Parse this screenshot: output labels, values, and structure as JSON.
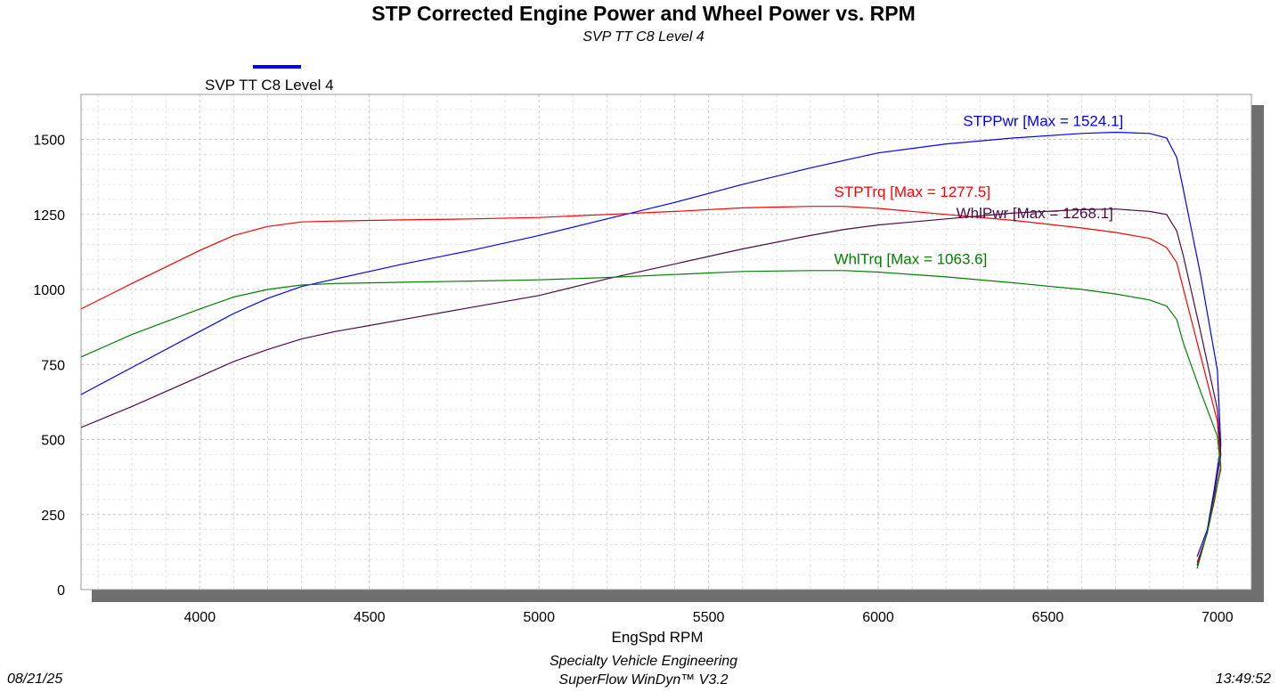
{
  "header": {
    "title": "STP Corrected Engine Power and Wheel Power vs. RPM",
    "subtitle": "SVP TT C8 Level 4"
  },
  "legend": {
    "label": "SVP TT C8 Level 4",
    "color": "#0000ff"
  },
  "footer": {
    "date": "08/21/25",
    "time": "13:49:52",
    "line1": "Specialty Vehicle Engineering",
    "line2": "SuperFlow WinDyn™ V3.2"
  },
  "chart_data": {
    "type": "line",
    "title": "STP Corrected Engine Power and Wheel Power vs. RPM",
    "subtitle": "SVP TT C8 Level 4",
    "xlabel": "EngSpd RPM",
    "ylabel": "",
    "xlim": [
      3650,
      7100
    ],
    "ylim": [
      0,
      1650
    ],
    "xticks": [
      4000,
      4500,
      5000,
      5500,
      6000,
      6500,
      7000
    ],
    "yticks": [
      0,
      250,
      500,
      750,
      1000,
      1250,
      1500
    ],
    "grid": true,
    "legend_position": "top-left",
    "series": [
      {
        "name": "STPPwr",
        "annotation": "STPPwr [Max = 1524.1]",
        "color": "#0000ff",
        "x": [
          3650,
          3800,
          4000,
          4100,
          4200,
          4300,
          4400,
          4500,
          4600,
          4800,
          5000,
          5200,
          5400,
          5600,
          5800,
          5900,
          6000,
          6200,
          6400,
          6600,
          6700,
          6800,
          6850,
          6880,
          6900,
          6950,
          7000,
          7010,
          6990,
          6970,
          6940
        ],
        "y": [
          650,
          740,
          860,
          920,
          970,
          1010,
          1035,
          1060,
          1085,
          1130,
          1180,
          1235,
          1290,
          1350,
          1405,
          1430,
          1455,
          1485,
          1505,
          1520,
          1524,
          1520,
          1505,
          1440,
          1330,
          1050,
          730,
          480,
          330,
          200,
          110
        ]
      },
      {
        "name": "STPTrq",
        "annotation": "STPTrq [Max = 1277.5]",
        "color": "#ff0000",
        "x": [
          3650,
          3800,
          4000,
          4100,
          4200,
          4300,
          4400,
          4500,
          4600,
          4800,
          5000,
          5200,
          5400,
          5600,
          5800,
          5900,
          6000,
          6200,
          6400,
          6600,
          6700,
          6800,
          6850,
          6880,
          6900,
          6950,
          7000,
          7010,
          6990,
          6970,
          6940
        ],
        "y": [
          935,
          1020,
          1130,
          1180,
          1210,
          1225,
          1228,
          1230,
          1232,
          1235,
          1240,
          1250,
          1260,
          1272,
          1277,
          1277,
          1270,
          1250,
          1230,
          1205,
          1190,
          1170,
          1140,
          1090,
          1000,
          780,
          560,
          410,
          290,
          190,
          90
        ]
      },
      {
        "name": "WhlPwr",
        "annotation": "WhlPwr [Max = 1268.1]",
        "color": "#4b0a46",
        "x": [
          3650,
          3800,
          4000,
          4100,
          4200,
          4300,
          4400,
          4500,
          4600,
          4800,
          5000,
          5200,
          5400,
          5600,
          5800,
          5900,
          6000,
          6200,
          6400,
          6600,
          6700,
          6800,
          6850,
          6880,
          6900,
          6950,
          7000,
          7010,
          6990,
          6970,
          6940
        ],
        "y": [
          540,
          610,
          710,
          760,
          800,
          835,
          860,
          880,
          900,
          940,
          980,
          1035,
          1085,
          1135,
          1180,
          1200,
          1215,
          1235,
          1255,
          1266,
          1268,
          1260,
          1250,
          1195,
          1110,
          860,
          600,
          450,
          310,
          190,
          80
        ]
      },
      {
        "name": "WhlTrq",
        "annotation": "WhlTrq [Max = 1063.6]",
        "color": "#008000",
        "x": [
          3650,
          3800,
          4000,
          4100,
          4200,
          4300,
          4400,
          4500,
          4600,
          4800,
          5000,
          5200,
          5400,
          5600,
          5800,
          5900,
          6000,
          6200,
          6400,
          6600,
          6700,
          6800,
          6850,
          6880,
          6900,
          6950,
          7000,
          7010,
          6990,
          6970,
          6940
        ],
        "y": [
          775,
          850,
          935,
          975,
          1000,
          1015,
          1020,
          1022,
          1024,
          1028,
          1032,
          1040,
          1050,
          1060,
          1063,
          1063,
          1058,
          1042,
          1022,
          1000,
          985,
          965,
          945,
          900,
          820,
          660,
          510,
          400,
          300,
          190,
          70
        ]
      }
    ],
    "annotations": [
      {
        "series": "STPPwr",
        "x": 6250,
        "y": 1545
      },
      {
        "series": "STPTrq",
        "x": 5870,
        "y": 1308
      },
      {
        "series": "WhlPwr",
        "x": 6230,
        "y": 1238
      },
      {
        "series": "WhlTrq",
        "x": 5870,
        "y": 1085
      }
    ]
  }
}
